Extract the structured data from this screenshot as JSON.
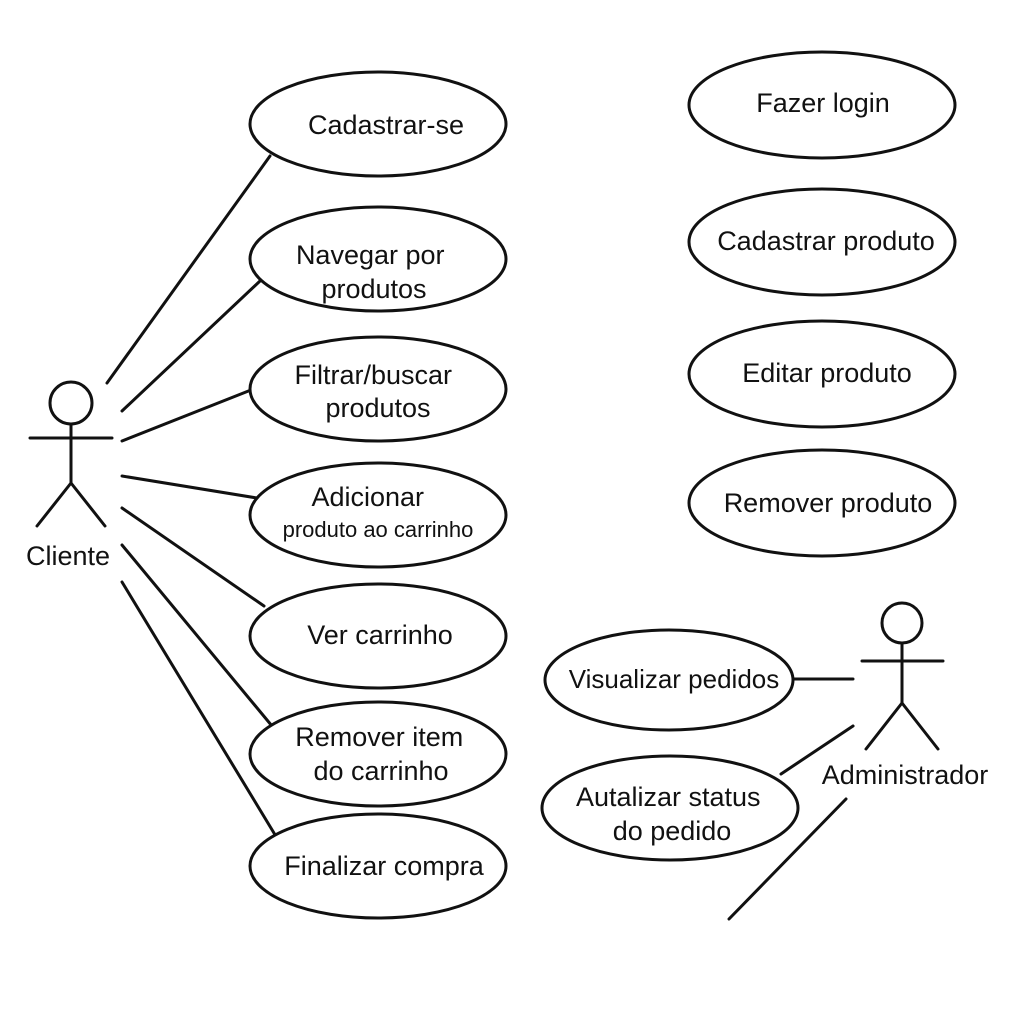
{
  "actors": {
    "cliente": {
      "label": "Cliente"
    },
    "administrador": {
      "label": "Administrador"
    }
  },
  "use_cases": {
    "cadastrar_se": {
      "lines": [
        "Cadastrar-se"
      ]
    },
    "navegar_por_produtos": {
      "lines": [
        "Navegar por",
        "produtos"
      ]
    },
    "filtrar_buscar_produtos": {
      "lines": [
        "Filtrar/buscar",
        "produtos"
      ]
    },
    "adicionar_produto_ao_carrinho": {
      "lines": [
        "Adicionar",
        "produto ao carrinho"
      ]
    },
    "ver_carrinho": {
      "lines": [
        "Ver carrinho"
      ]
    },
    "remover_item_do_carrinho": {
      "lines": [
        "Remover item",
        "do carrinho"
      ]
    },
    "finalizar_compra": {
      "lines": [
        "Finalizar compra"
      ]
    },
    "fazer_login": {
      "lines": [
        "Fazer login"
      ]
    },
    "cadastrar_produto": {
      "lines": [
        "Cadastrar produto"
      ]
    },
    "editar_produto": {
      "lines": [
        "Editar produto"
      ]
    },
    "remover_produto": {
      "lines": [
        "Remover produto"
      ]
    },
    "visualizar_pedidos": {
      "lines": [
        "Visualizar pedidos"
      ]
    },
    "autalizar_status_do_pedido": {
      "lines": [
        "Autalizar status",
        "do pedido"
      ]
    }
  },
  "associations": [
    {
      "actor": "cliente",
      "use_case": "cadastrar_se"
    },
    {
      "actor": "cliente",
      "use_case": "navegar_por_produtos"
    },
    {
      "actor": "cliente",
      "use_case": "filtrar_buscar_produtos"
    },
    {
      "actor": "cliente",
      "use_case": "adicionar_produto_ao_carrinho"
    },
    {
      "actor": "cliente",
      "use_case": "ver_carrinho"
    },
    {
      "actor": "cliente",
      "use_case": "remover_item_do_carrinho"
    },
    {
      "actor": "cliente",
      "use_case": "finalizar_compra"
    },
    {
      "actor": "administrador",
      "use_case": "visualizar_pedidos"
    },
    {
      "actor": "administrador",
      "use_case": "autalizar_status_do_pedido"
    }
  ]
}
